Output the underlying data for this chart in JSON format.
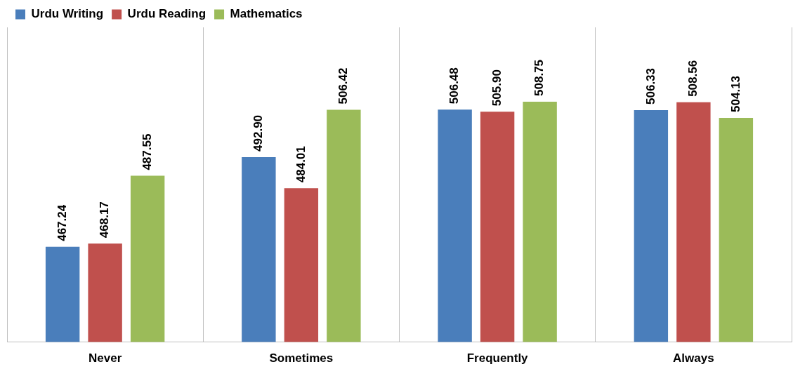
{
  "chart_data": {
    "type": "bar",
    "categories": [
      "Never",
      "Sometimes",
      "Frequently",
      "Always"
    ],
    "series": [
      {
        "name": "Urdu Writing",
        "color": "#4a7ebb",
        "values": [
          467.24,
          492.9,
          506.48,
          506.33
        ],
        "value_labels": [
          "467.24",
          "492.90",
          "506.48",
          "506.33"
        ]
      },
      {
        "name": "Urdu Reading",
        "color": "#c0504d",
        "values": [
          468.17,
          484.01,
          505.9,
          508.56
        ],
        "value_labels": [
          "468.17",
          "484.01",
          "505.90",
          "508.56"
        ]
      },
      {
        "name": "Mathematics",
        "color": "#9bbb59",
        "values": [
          487.55,
          506.42,
          508.75,
          504.13
        ],
        "value_labels": [
          "487.55",
          "506.42",
          "508.75",
          "504.13"
        ]
      }
    ],
    "ylim": [
      440,
      530
    ],
    "tick_labels": "x",
    "grid": "x",
    "legend": "top left"
  }
}
